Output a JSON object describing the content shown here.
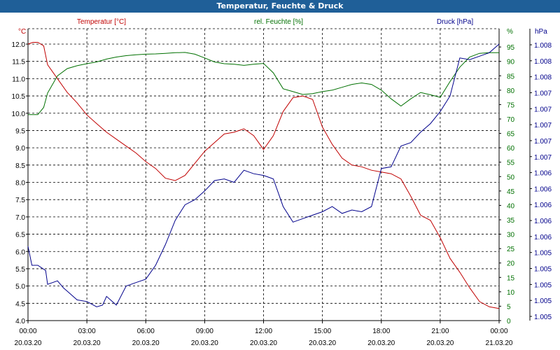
{
  "window": {
    "title": "Temperatur, Feuchte & Druck"
  },
  "colors": {
    "titlebar": "#1f5f98",
    "temp": "#c00000",
    "hum": "#007000",
    "press": "#00008b",
    "grid": "#000000",
    "axis": "#000000"
  },
  "chart_data": {
    "type": "line",
    "title": "Temperatur, Feuchte & Druck",
    "grid": true,
    "x_axis": {
      "ticks": [
        {
          "time": "00:00",
          "date": "20.03.20"
        },
        {
          "time": "03:00",
          "date": "20.03.20"
        },
        {
          "time": "06:00",
          "date": "20.03.20"
        },
        {
          "time": "09:00",
          "date": "20.03.20"
        },
        {
          "time": "12:00",
          "date": "20.03.20"
        },
        {
          "time": "15:00",
          "date": "20.03.20"
        },
        {
          "time": "18:00",
          "date": "20.03.20"
        },
        {
          "time": "21:00",
          "date": "20.03.20"
        },
        {
          "time": "00:00",
          "date": "21.03.20"
        }
      ],
      "range_hours": [
        0,
        24
      ]
    },
    "axes": {
      "temp": {
        "unit": "°C",
        "label": "Temperatur [°C]",
        "ylim": [
          4.0,
          12.0
        ],
        "tick_labels": [
          "4.0",
          "4.5",
          "5.0",
          "5.5",
          "6.0",
          "6.5",
          "7.0",
          "7.5",
          "8.0",
          "8.5",
          "9.0",
          "9.5",
          "10.0",
          "10.5",
          "11.0",
          "11.5",
          "12.0"
        ]
      },
      "hum": {
        "unit": "%",
        "label": "rel. Feuchte [%]",
        "ylim": [
          0,
          96
        ],
        "tick_labels": [
          "0",
          "5",
          "10",
          "15",
          "20",
          "25",
          "30",
          "35",
          "40",
          "45",
          "50",
          "55",
          "60",
          "65",
          "70",
          "75",
          "80",
          "85",
          "90",
          "95"
        ],
        "top_label": "%"
      },
      "press": {
        "unit": "hPa",
        "label": "Druck [hPa]",
        "tick_labels": [
          "1.005",
          "1.005",
          "1.005",
          "1.005",
          "1.005",
          "1.006",
          "1.006",
          "1.006",
          "1.006",
          "1.006",
          "1.007",
          "1.007",
          "1.007",
          "1.007",
          "1.007",
          "1.008",
          "1.008",
          "1.008"
        ]
      }
    },
    "series": [
      {
        "name": "Temperatur [°C]",
        "axis": "temp",
        "x": [
          0,
          0.25,
          0.5,
          0.8,
          1.0,
          1.5,
          2.0,
          2.5,
          3.0,
          3.5,
          4.0,
          4.5,
          5.0,
          5.5,
          6.0,
          6.5,
          7.0,
          7.5,
          8.0,
          8.5,
          9.0,
          9.5,
          10.0,
          10.5,
          11.0,
          11.5,
          12.0,
          12.5,
          13.0,
          13.5,
          14.0,
          14.5,
          15.0,
          15.5,
          16.0,
          16.5,
          17.0,
          17.5,
          18.0,
          18.5,
          19.0,
          19.5,
          20.0,
          20.5,
          21.0,
          21.5,
          22.0,
          22.5,
          23.0,
          23.5,
          24.0
        ],
        "values": [
          12.0,
          12.05,
          12.05,
          11.95,
          11.4,
          11.0,
          10.6,
          10.3,
          9.95,
          9.7,
          9.45,
          9.25,
          9.05,
          8.85,
          8.6,
          8.4,
          8.12,
          8.05,
          8.2,
          8.55,
          8.9,
          9.15,
          9.4,
          9.45,
          9.55,
          9.35,
          8.95,
          9.35,
          10.05,
          10.45,
          10.5,
          10.4,
          9.6,
          9.1,
          8.7,
          8.5,
          8.45,
          8.35,
          8.3,
          8.25,
          8.1,
          7.6,
          7.05,
          6.9,
          6.4,
          5.8,
          5.4,
          4.95,
          4.55,
          4.4,
          4.35
        ]
      },
      {
        "name": "rel. Feuchte [%]",
        "axis": "hum",
        "x": [
          0,
          0.5,
          0.8,
          1.0,
          1.5,
          2.0,
          2.5,
          3.0,
          3.5,
          4.0,
          4.5,
          5.0,
          5.5,
          6.0,
          6.5,
          7.0,
          7.5,
          8.0,
          8.5,
          9.0,
          9.5,
          10.0,
          10.5,
          11.0,
          11.5,
          12.0,
          12.5,
          13.0,
          13.5,
          14.0,
          14.5,
          15.0,
          15.5,
          16.0,
          16.5,
          17.0,
          17.5,
          18.0,
          18.5,
          19.0,
          19.5,
          20.0,
          20.5,
          21.0,
          21.5,
          22.0,
          22.5,
          23.0,
          23.5,
          24.0
        ],
        "values": [
          71.5,
          71.5,
          74,
          79,
          85,
          87.5,
          88.5,
          89.2,
          89.8,
          90.8,
          91.5,
          92,
          92.3,
          92.5,
          92.6,
          92.8,
          93,
          93.1,
          92.5,
          91.2,
          89.8,
          89.2,
          89.0,
          88.6,
          89.0,
          89.3,
          86,
          80.5,
          79.5,
          78.5,
          78.8,
          79.5,
          80,
          81,
          82,
          82.5,
          82,
          80,
          77,
          74.5,
          77,
          79.2,
          78.4,
          77.5,
          83,
          88,
          91.5,
          92.8,
          93,
          93
        ]
      },
      {
        "name": "Druck [hPa]",
        "axis": "press",
        "x": [
          0,
          0.2,
          0.5,
          0.9,
          1.0,
          1.5,
          1.8,
          2.0,
          2.5,
          3.0,
          3.5,
          3.8,
          4.0,
          4.5,
          5.0,
          5.5,
          6.0,
          6.5,
          7.0,
          7.5,
          8.0,
          8.5,
          9.0,
          9.5,
          10.0,
          10.5,
          11.0,
          11.5,
          12.0,
          12.5,
          13.0,
          13.5,
          14.0,
          14.5,
          15.0,
          15.5,
          16.0,
          16.5,
          17.0,
          17.5,
          18.0,
          18.5,
          19.0,
          19.5,
          20.0,
          20.5,
          21.0,
          21.5,
          22.0,
          22.5,
          23.0,
          23.5,
          24.0
        ],
        "values": [
          6.15,
          5.6,
          5.6,
          5.45,
          5.05,
          5.15,
          4.95,
          4.85,
          4.6,
          4.55,
          4.4,
          4.45,
          4.7,
          4.45,
          5.0,
          5.1,
          5.2,
          5.6,
          6.2,
          6.9,
          7.35,
          7.5,
          7.75,
          8.05,
          8.1,
          8.0,
          8.35,
          8.25,
          8.2,
          8.1,
          7.3,
          6.85,
          6.95,
          7.05,
          7.15,
          7.3,
          7.1,
          7.2,
          7.15,
          7.3,
          8.4,
          8.45,
          9.05,
          9.15,
          9.45,
          9.7,
          10.05,
          10.5,
          11.6,
          11.55,
          11.65,
          11.75,
          12.0
        ]
      }
    ]
  }
}
